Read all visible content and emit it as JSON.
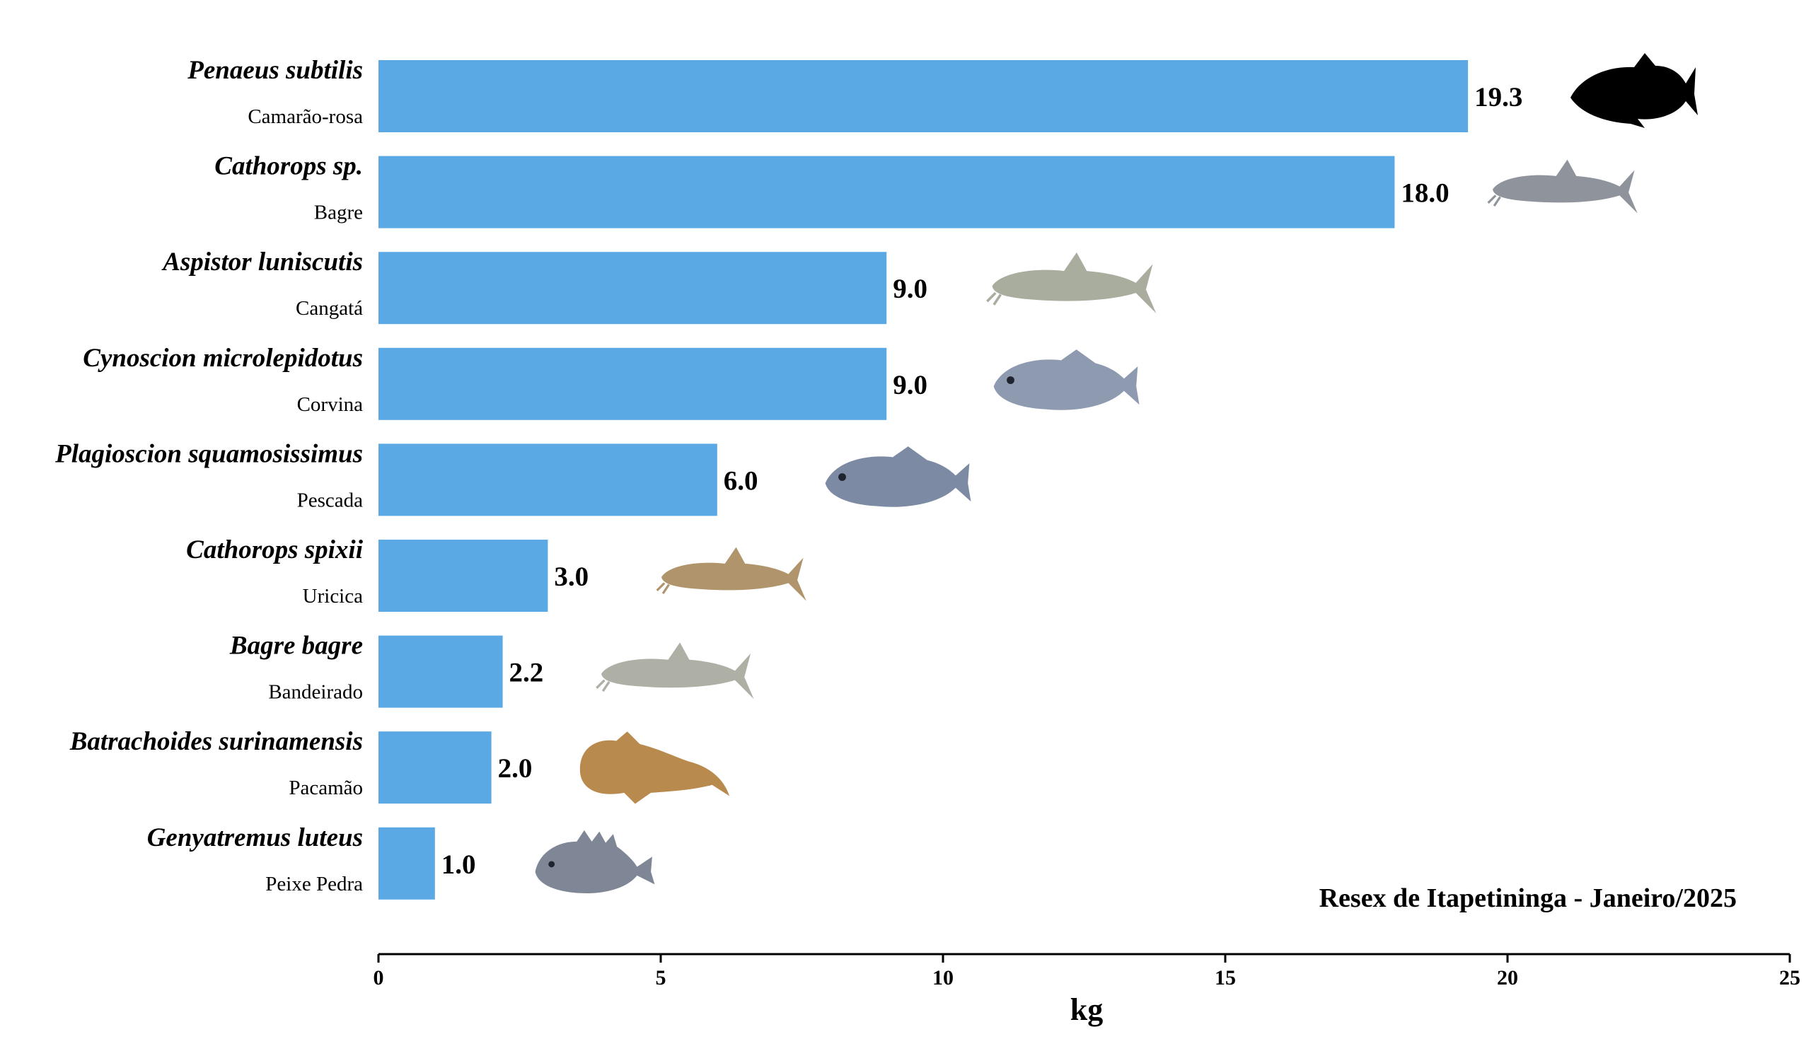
{
  "chart_data": {
    "type": "bar",
    "orientation": "horizontal",
    "categories": [
      {
        "scientific": "Penaeus subtilis",
        "common": "Camarão-rosa"
      },
      {
        "scientific": "Cathorops sp.",
        "common": "Bagre"
      },
      {
        "scientific": "Aspistor luniscutis",
        "common": "Cangatá"
      },
      {
        "scientific": "Cynoscion microlepidotus",
        "common": "Corvina"
      },
      {
        "scientific": "Plagioscion squamosissimus",
        "common": "Pescada"
      },
      {
        "scientific": "Cathorops spixii",
        "common": "Uricica"
      },
      {
        "scientific": "Bagre bagre",
        "common": "Bandeirado"
      },
      {
        "scientific": "Batrachoides surinamensis",
        "common": "Pacamão"
      },
      {
        "scientific": "Genyatremus luteus",
        "common": "Peixe Pedra"
      }
    ],
    "values": [
      19.3,
      18.0,
      9.0,
      9.0,
      6.0,
      3.0,
      2.2,
      2.0,
      1.0
    ],
    "value_labels": [
      "19.3",
      "18.0",
      "9.0",
      "9.0",
      "6.0",
      "3.0",
      "2.2",
      "2.0",
      "1.0"
    ],
    "xlabel": "kg",
    "xlim": [
      0,
      25
    ],
    "xticks": [
      0,
      5,
      10,
      15,
      20,
      25
    ],
    "annotation": "Resex de Itapetininga - Janeiro/2025",
    "bar_color": "#5aa8e4",
    "grid": false,
    "species_icons": [
      {
        "name": "fish-silhouette-icon",
        "color": "#000000"
      },
      {
        "name": "catfish-icon",
        "color": "#8e939c"
      },
      {
        "name": "catfish-icon",
        "color": "#a8ad9e"
      },
      {
        "name": "croaker-icon",
        "color": "#8e9ab0"
      },
      {
        "name": "croaker-icon",
        "color": "#7d8aa4"
      },
      {
        "name": "catfish-icon",
        "color": "#b0956c"
      },
      {
        "name": "catfish-icon",
        "color": "#aeb0a6"
      },
      {
        "name": "toadfish-icon",
        "color": "#b88a4e"
      },
      {
        "name": "grunt-icon",
        "color": "#7f8796"
      }
    ]
  }
}
